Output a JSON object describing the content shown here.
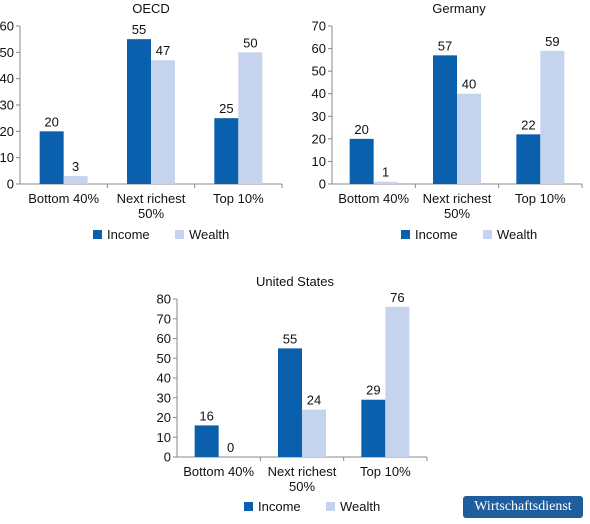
{
  "colors": {
    "income": "#0b60ae",
    "wealth": "#c5d3ee",
    "axis": "#888888",
    "text": "#111111"
  },
  "chart_data": [
    {
      "type": "bar",
      "title": "OECD",
      "categories": [
        "Bottom 40%",
        "Next richest 50%",
        "Top 10%"
      ],
      "series": [
        {
          "name": "Income",
          "values": [
            20,
            55,
            25
          ]
        },
        {
          "name": "Wealth",
          "values": [
            3,
            47,
            50
          ]
        }
      ],
      "ylim": [
        0,
        60
      ],
      "yticks": [
        0,
        10,
        20,
        30,
        40,
        50,
        60
      ],
      "legend": "bottom",
      "grid": false
    },
    {
      "type": "bar",
      "title": "Germany",
      "categories": [
        "Bottom 40%",
        "Next richest 50%",
        "Top 10%"
      ],
      "series": [
        {
          "name": "Income",
          "values": [
            20,
            57,
            22
          ]
        },
        {
          "name": "Wealth",
          "values": [
            1,
            40,
            59
          ]
        }
      ],
      "ylim": [
        0,
        70
      ],
      "yticks": [
        0,
        10,
        20,
        30,
        40,
        50,
        60,
        70
      ],
      "legend": "bottom",
      "grid": false
    },
    {
      "type": "bar",
      "title": "United States",
      "categories": [
        "Bottom 40%",
        "Next richest 50%",
        "Top 10%"
      ],
      "series": [
        {
          "name": "Income",
          "values": [
            16,
            55,
            29
          ]
        },
        {
          "name": "Wealth",
          "values": [
            0,
            24,
            76
          ]
        }
      ],
      "ylim": [
        0,
        80
      ],
      "yticks": [
        0,
        10,
        20,
        30,
        40,
        50,
        60,
        70,
        80
      ],
      "legend": "bottom",
      "grid": false
    }
  ],
  "logo": {
    "text": "Wirtschaftsdienst"
  }
}
